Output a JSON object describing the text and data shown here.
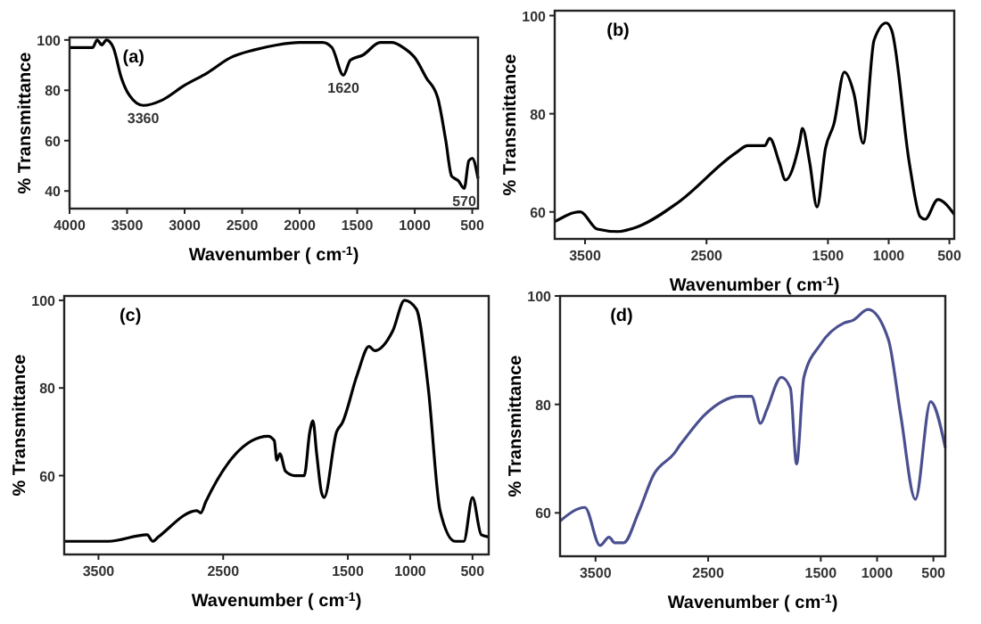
{
  "chart_data": [
    {
      "type": "line",
      "title": "(a)",
      "xlabel": "Wavenumber ( cm$^{-1}$)",
      "ylabel": "% Transmittance",
      "xlim": [
        4000,
        450
      ],
      "ylim": [
        33,
        101
      ],
      "xticks": [
        4000,
        3500,
        3000,
        2500,
        2000,
        1500,
        1000,
        500
      ],
      "yticks": [
        40,
        60,
        80,
        100
      ],
      "annotations": [
        {
          "text": "3360",
          "x": 3360,
          "y": 74
        },
        {
          "text": "1620",
          "x": 1620,
          "y": 86
        },
        {
          "text": "570",
          "x": 570,
          "y": 41
        }
      ],
      "series": [
        {
          "color": "#000000",
          "x": [
            4000,
            3800,
            3760,
            3720,
            3680,
            3620,
            3550,
            3480,
            3360,
            3200,
            3000,
            2800,
            2600,
            2400,
            2200,
            2000,
            1800,
            1720,
            1620,
            1560,
            1450,
            1300,
            1200,
            1100,
            1000,
            900,
            800,
            730,
            680,
            620,
            570,
            530,
            500,
            450
          ],
          "values": [
            97,
            97,
            100,
            98,
            100,
            97,
            85,
            78,
            74,
            76,
            82,
            87,
            93,
            96,
            98,
            99,
            99,
            97,
            86,
            92,
            94,
            99,
            99,
            97,
            93,
            85,
            77,
            60,
            46,
            44,
            41,
            52,
            53,
            45
          ]
        }
      ]
    },
    {
      "type": "line",
      "title": "(b)",
      "xlabel": "Wavenumber ( cm$^{-1}$)",
      "ylabel": "% Transmittance",
      "xlim": [
        3750,
        460
      ],
      "ylim": [
        54.5,
        101
      ],
      "xticks": [
        3500,
        2500,
        1500,
        1000,
        500
      ],
      "yticks": [
        60,
        80,
        100
      ],
      "series": [
        {
          "color": "#000000",
          "x": [
            3750,
            3540,
            3400,
            3230,
            3065,
            2730,
            2260,
            2160,
            2020,
            1980,
            1900,
            1850,
            1735,
            1710,
            1650,
            1590,
            1520,
            1450,
            1365,
            1285,
            1210,
            1120,
            1020,
            975,
            830,
            740,
            700,
            595,
            460
          ],
          "values": [
            58,
            60,
            56.5,
            56,
            57,
            62,
            72,
            73.5,
            73.5,
            75,
            70,
            66.5,
            74,
            77,
            70,
            61,
            73,
            78,
            88.5,
            84,
            74,
            95,
            98.5,
            97,
            70,
            59,
            58.5,
            62.5,
            59.5
          ]
        }
      ]
    },
    {
      "type": "line",
      "title": "(c)",
      "xlabel": "Wavenumber ( cm$^{-1}$)",
      "ylabel": "% Transmittance",
      "xlim": [
        3775,
        370
      ],
      "ylim": [
        42,
        101
      ],
      "xticks": [
        3500,
        2500,
        1500,
        1000,
        500
      ],
      "yticks": [
        60,
        80,
        100
      ],
      "series": [
        {
          "color": "#000000",
          "x": [
            3775,
            3420,
            3110,
            3065,
            3020,
            2710,
            2680,
            2640,
            2140,
            2090,
            2070,
            2045,
            2000,
            1925,
            1850,
            1805,
            1780,
            1750,
            1710,
            1690,
            1590,
            1545,
            1425,
            1330,
            1285,
            1140,
            1045,
            950,
            855,
            760,
            640,
            570,
            500,
            430,
            370
          ],
          "values": [
            45,
            45,
            46.5,
            45,
            46,
            52,
            51.5,
            54,
            69,
            68,
            63.5,
            65,
            61,
            60,
            60,
            70,
            72.5,
            65,
            56,
            55,
            70,
            72,
            83,
            89.5,
            88.5,
            93,
            100,
            98,
            80,
            52,
            45,
            45,
            55,
            46.5,
            46
          ]
        }
      ]
    },
    {
      "type": "line",
      "title": "(d)",
      "xlabel": "Wavenumber ( cm$^{-1}$)",
      "ylabel": "% Transmittance",
      "xlim": [
        3815,
        394
      ],
      "ylim": [
        52,
        100
      ],
      "xticks": [
        3500,
        2500,
        1500,
        1000,
        500
      ],
      "yticks": [
        60,
        80,
        100
      ],
      "series": [
        {
          "color": "#4a4f8f",
          "x": [
            3815,
            3595,
            3460,
            3380,
            3330,
            3250,
            3120,
            2985,
            2800,
            2750,
            2695,
            2535,
            2220,
            2115,
            2035,
            1980,
            1850,
            1770,
            1715,
            1650,
            1505,
            1295,
            1215,
            1080,
            900,
            790,
            660,
            525,
            394
          ],
          "values": [
            58.5,
            61,
            54,
            55.5,
            54.5,
            54.5,
            60,
            67,
            71,
            72.5,
            74,
            78,
            81.5,
            81.5,
            76.5,
            79,
            85,
            83,
            69,
            85,
            91,
            95,
            95.5,
            97.5,
            92,
            78,
            62.5,
            80.5,
            72
          ]
        }
      ]
    }
  ]
}
